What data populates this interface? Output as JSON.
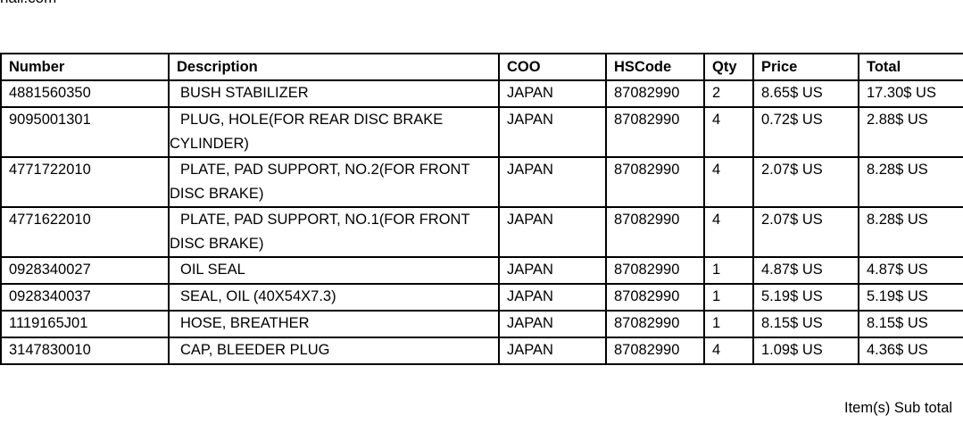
{
  "top_text": "nail.com",
  "table": {
    "headers": [
      "Number",
      "Description",
      "COO",
      "HSCode",
      "Qty",
      "Price",
      "Total"
    ],
    "rows": [
      {
        "number": "4881560350",
        "description": "BUSH STABILIZER",
        "coo": "JAPAN",
        "hscode": "87082990",
        "qty": "2",
        "price": "8.65$ US",
        "total": "17.30$ US"
      },
      {
        "number": "9095001301",
        "description": "PLUG, HOLE(FOR REAR DISC BRAKE CYLINDER)",
        "coo": "JAPAN",
        "hscode": "87082990",
        "qty": "4",
        "price": "0.72$ US",
        "total": "2.88$ US"
      },
      {
        "number": "4771722010",
        "description": "PLATE, PAD SUPPORT, NO.2(FOR FRONT DISC BRAKE)",
        "coo": "JAPAN",
        "hscode": "87082990",
        "qty": "4",
        "price": "2.07$ US",
        "total": "8.28$ US"
      },
      {
        "number": "4771622010",
        "description": "PLATE, PAD SUPPORT, NO.1(FOR FRONT DISC BRAKE)",
        "coo": "JAPAN",
        "hscode": "87082990",
        "qty": "4",
        "price": "2.07$ US",
        "total": "8.28$ US"
      },
      {
        "number": "0928340027",
        "description": "OIL SEAL",
        "coo": "JAPAN",
        "hscode": "87082990",
        "qty": "1",
        "price": "4.87$ US",
        "total": "4.87$ US"
      },
      {
        "number": "0928340037",
        "description": "SEAL, OIL (40X54X7.3)",
        "coo": "JAPAN",
        "hscode": "87082990",
        "qty": "1",
        "price": "5.19$ US",
        "total": "5.19$ US"
      },
      {
        "number": "1119165J01",
        "description": "HOSE, BREATHER",
        "coo": "JAPAN",
        "hscode": "87082990",
        "qty": "1",
        "price": "8.15$ US",
        "total": "8.15$ US"
      },
      {
        "number": "3147830010",
        "description": "CAP, BLEEDER PLUG",
        "coo": "JAPAN",
        "hscode": "87082990",
        "qty": "4",
        "price": "1.09$ US",
        "total": "4.36$ US"
      }
    ]
  },
  "subtotal_label": "Item(s) Sub total"
}
